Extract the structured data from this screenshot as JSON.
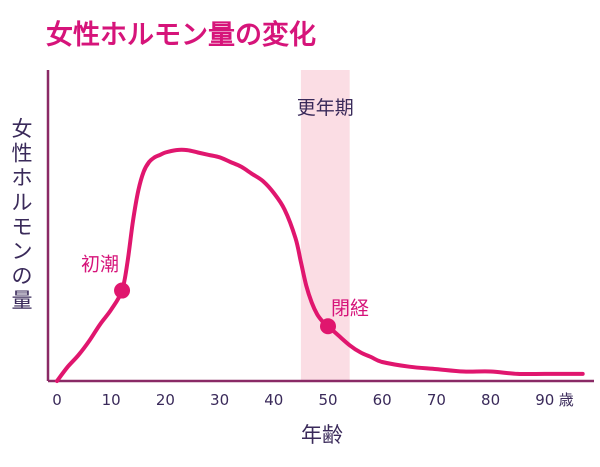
{
  "colors": {
    "curve": "#e0166e",
    "title": "#d6147a",
    "axis": "#8a2a66",
    "text": "#3a2a5a",
    "band": "#fbdde4"
  },
  "chart_data": {
    "type": "line",
    "title": "女性ホルモン量の変化",
    "xlabel": "年齢",
    "ylabel": "女性ホルモンの量",
    "x_unit": "歳",
    "xlim": [
      0,
      97
    ],
    "ylim": [
      0,
      100
    ],
    "x_ticks": [
      "0",
      "10",
      "20",
      "30",
      "40",
      "50",
      "60",
      "70",
      "80",
      "90"
    ],
    "series": [
      {
        "x": [
          0,
          2,
          4,
          6,
          8,
          10,
          12,
          13,
          14,
          15,
          16,
          17,
          18,
          19,
          20,
          22,
          24,
          26,
          28,
          30,
          32,
          34,
          36,
          38,
          40,
          42,
          44,
          45,
          46,
          47,
          48,
          49,
          50,
          51,
          52,
          54,
          56,
          58,
          60,
          65,
          70,
          75,
          80,
          85,
          90,
          95,
          97
        ],
        "y": [
          0,
          6,
          11,
          17,
          24,
          30,
          38,
          50,
          67,
          80,
          88,
          92,
          94,
          95,
          96,
          97,
          97,
          96,
          95,
          94,
          92,
          90,
          87,
          84,
          79,
          72,
          60,
          50,
          40,
          33,
          28,
          25,
          23,
          21,
          19,
          15,
          12,
          10,
          8,
          6,
          5,
          4,
          4,
          3,
          3,
          3,
          3
        ]
      }
    ],
    "highlight_band": {
      "label": "更年期",
      "x_range": [
        45,
        54
      ]
    },
    "annotations": [
      {
        "label": "初潮",
        "x": 12,
        "y": 38
      },
      {
        "label": "閉経",
        "x": 50,
        "y": 23
      }
    ]
  }
}
